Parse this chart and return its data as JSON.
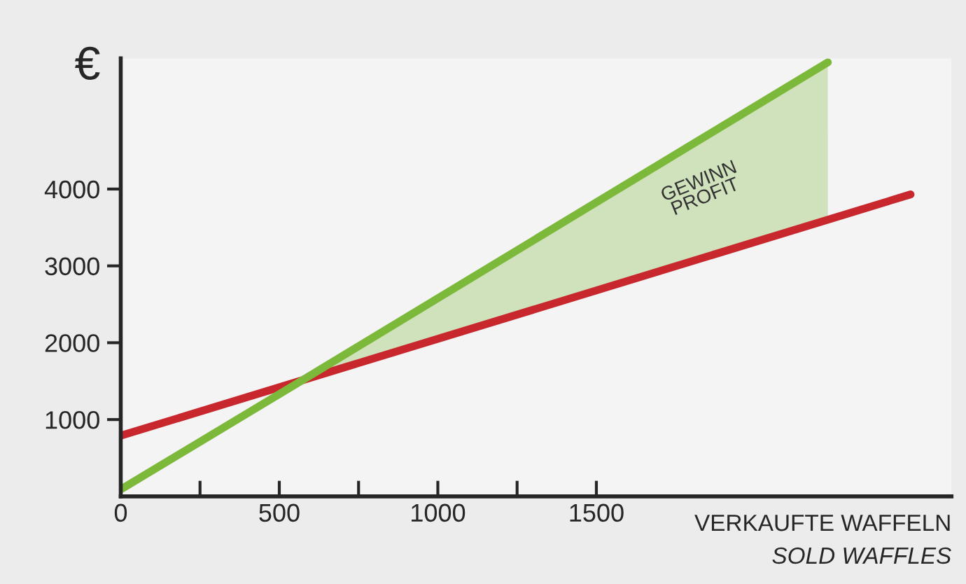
{
  "chart_data": {
    "type": "line",
    "ylabel": "€",
    "xlabel": "VERKAUFTE WAFFELN\nSOLD WAFFLES",
    "series": [
      {
        "color": "#c8282d",
        "x": [
          0,
          2491
        ],
        "values": [
          790,
          3930
        ]
      },
      {
        "color": "#7cb93a",
        "x": [
          0,
          560,
          2230
        ],
        "values": [
          90,
          1480,
          5650
        ],
        "lower": [
          null,
          1480,
          3600
        ],
        "upper": [
          null,
          1480,
          5650
        ]
      }
    ],
    "annotations": [
      "GEWINN\nPROFIT"
    ],
    "xlim": [
      0,
      2620
    ],
    "ylim": [
      0,
      5700
    ],
    "xticks": [
      0,
      {
        "value": 250,
        "label": null
      },
      500,
      {
        "value": 750,
        "label": null
      },
      1000,
      {
        "value": 1250,
        "label": null
      },
      1500
    ],
    "yticks": [
      1000,
      2000,
      3000,
      4000
    ],
    "grid": false,
    "legend": false
  }
}
